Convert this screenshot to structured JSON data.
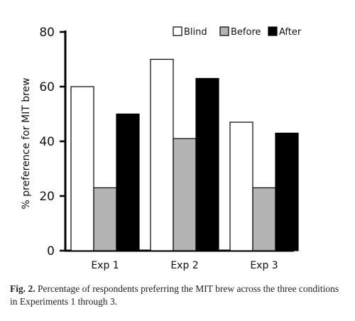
{
  "chart_data": {
    "type": "bar",
    "categories": [
      "Exp 1",
      "Exp 2",
      "Exp 3"
    ],
    "series": [
      {
        "name": "Blind",
        "values": [
          60,
          70,
          47
        ],
        "color": "#ffffff"
      },
      {
        "name": "Before",
        "values": [
          23,
          41,
          23
        ],
        "color": "#b3b3b3"
      },
      {
        "name": "After",
        "values": [
          50,
          63,
          43
        ],
        "color": "#000000"
      }
    ],
    "ylabel": "% preference for MIT brew",
    "xlabel": "",
    "ylim": [
      0,
      80
    ],
    "yticks": [
      0,
      20,
      40,
      60,
      80
    ],
    "legend_position": "top-right",
    "grid": false
  },
  "caption": {
    "label": "Fig. 2.",
    "text": "Percentage of respondents preferring the MIT brew across the three conditions in Experiments 1 through 3."
  }
}
